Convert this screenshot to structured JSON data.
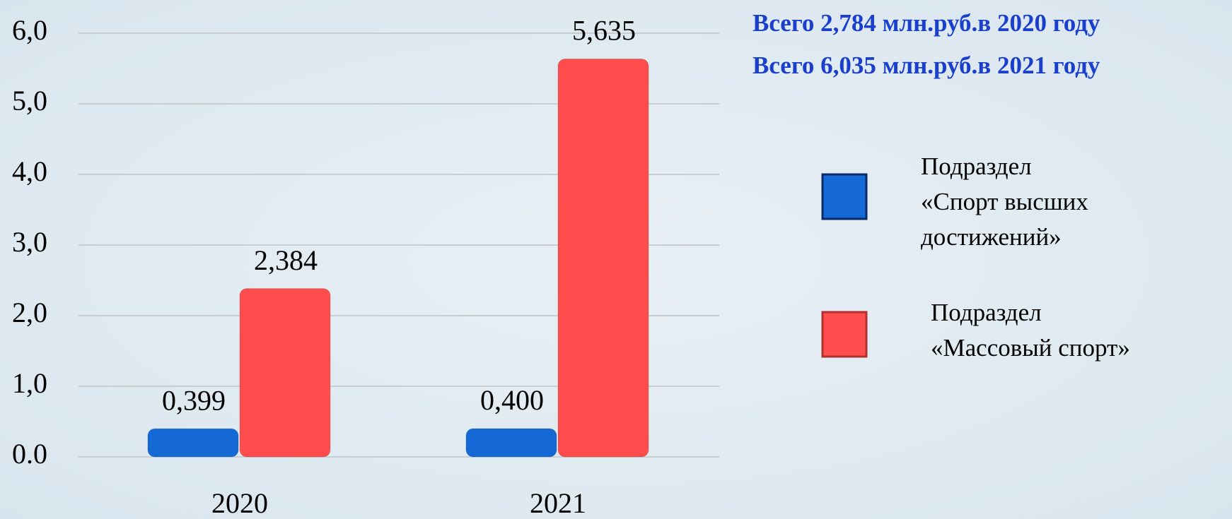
{
  "chart_data": {
    "type": "bar",
    "annotations": [
      "Всего 2,784 млн.руб.в 2020 году",
      "Всего 6,035 млн.руб.в 2021 году"
    ],
    "categories": [
      "2020",
      "2021"
    ],
    "series": [
      {
        "name": "Подраздел «Спорт высших достижений»",
        "color": "#1469d6",
        "values": [
          0.399,
          0.4
        ],
        "value_labels": [
          "0,399",
          "0,400"
        ]
      },
      {
        "name": "Подраздел «Массовый спорт»",
        "color": "#ff4d4d",
        "values": [
          2.384,
          5.635
        ],
        "value_labels": [
          "2,384",
          "5,635"
        ]
      }
    ],
    "ylim": [
      0,
      6
    ],
    "yticks": [
      {
        "value": 0,
        "label": "0.0"
      },
      {
        "value": 1,
        "label": "1,0"
      },
      {
        "value": 2,
        "label": "2,0"
      },
      {
        "value": 3,
        "label": "3,0"
      },
      {
        "value": 4,
        "label": "4,0"
      },
      {
        "value": 5,
        "label": "5,0"
      },
      {
        "value": 6,
        "label": "6,0"
      }
    ],
    "grid": true
  }
}
